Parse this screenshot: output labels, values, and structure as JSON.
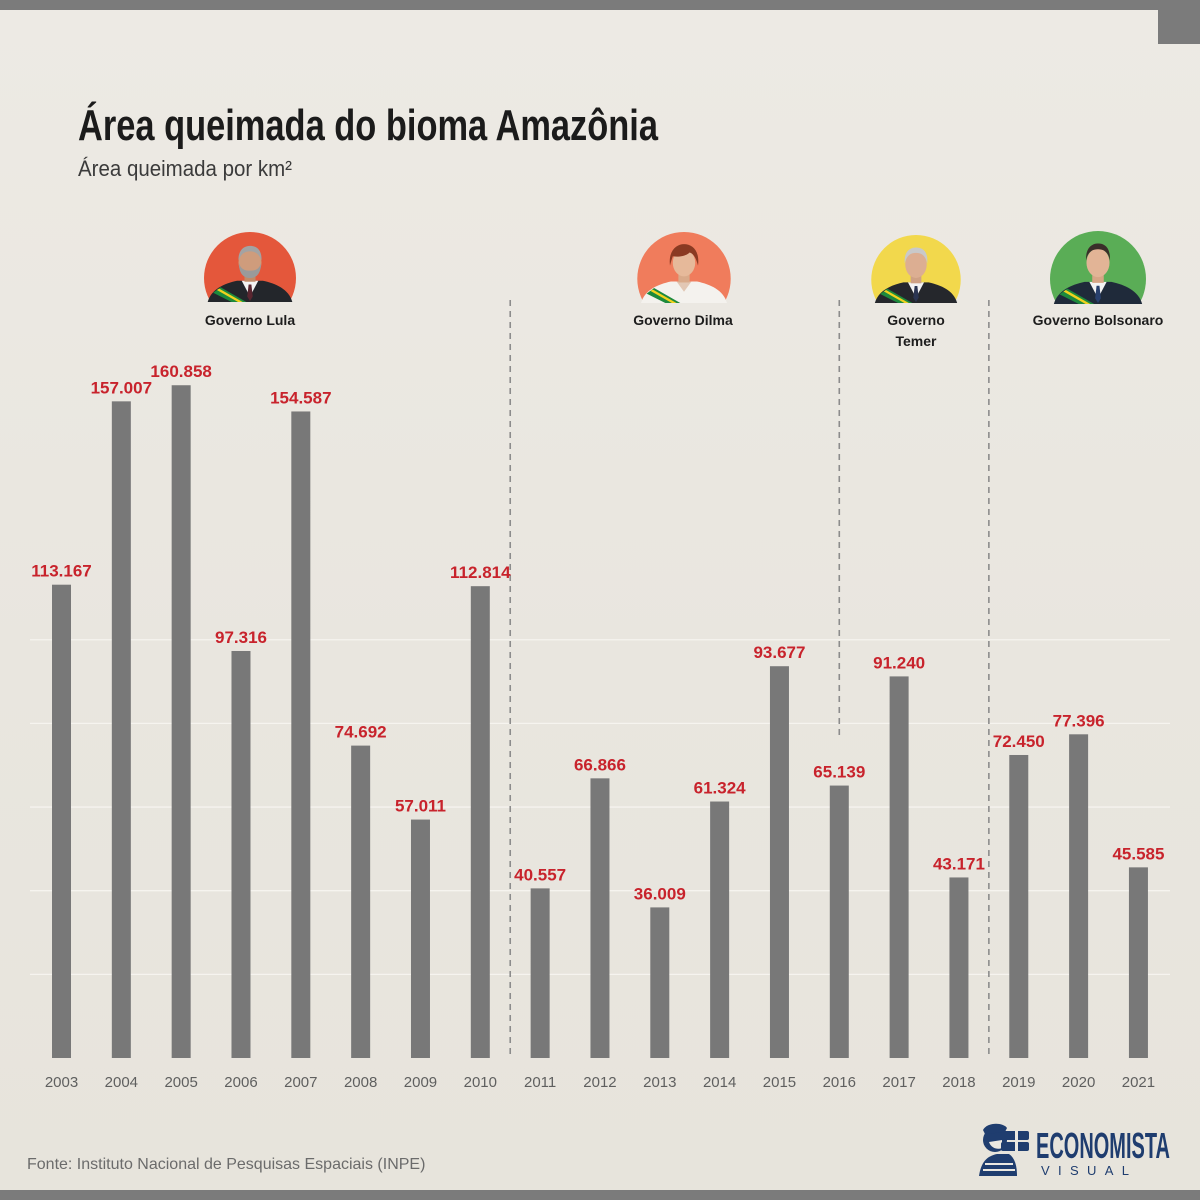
{
  "chart_data": {
    "type": "bar",
    "title": "Área queimada do bioma Amazônia",
    "subtitle": "Área queimada por km²",
    "categories": [
      "2003",
      "2004",
      "2005",
      "2006",
      "2007",
      "2008",
      "2009",
      "2010",
      "2011",
      "2012",
      "2013",
      "2014",
      "2015",
      "2016",
      "2017",
      "2018",
      "2019",
      "2020",
      "2021"
    ],
    "values": [
      113167,
      157007,
      160858,
      97316,
      154587,
      74692,
      57011,
      112814,
      40557,
      66866,
      36009,
      61324,
      93677,
      65139,
      91240,
      43171,
      72450,
      77396,
      45585
    ],
    "data_labels": [
      "113.167",
      "157.007",
      "160.858",
      "97.316",
      "154.587",
      "74.692",
      "57.011",
      "112.814",
      "40.557",
      "66.866",
      "36.009",
      "61.324",
      "93.677",
      "65.139",
      "91.240",
      "43.171",
      "72.450",
      "77.396",
      "45.585"
    ],
    "ylim": [
      0,
      170000
    ],
    "grid": true
  },
  "governments": [
    {
      "label": "Governo Lula",
      "start": 2003,
      "end": 2010,
      "color": "#e4573b"
    },
    {
      "label": "Governo Dilma",
      "start": 2011,
      "end": 2016,
      "color": "#f07c5c"
    },
    {
      "label": "Governo Temer",
      "start": 2016,
      "end": 2018,
      "color": "#f2d84c"
    },
    {
      "label": "Governo Bolsonaro",
      "start": 2019,
      "end": 2021,
      "color": "#5aad56"
    }
  ],
  "footer": {
    "source": "Fonte: Instituto Nacional de Pesquisas Espaciais (INPE)"
  },
  "logo": {
    "name": "ECONOMISTA",
    "tagline": "VISUAL"
  },
  "colors": {
    "bar": "#787878",
    "data_label": "#c8232c",
    "logo": "#1f3d6f"
  }
}
